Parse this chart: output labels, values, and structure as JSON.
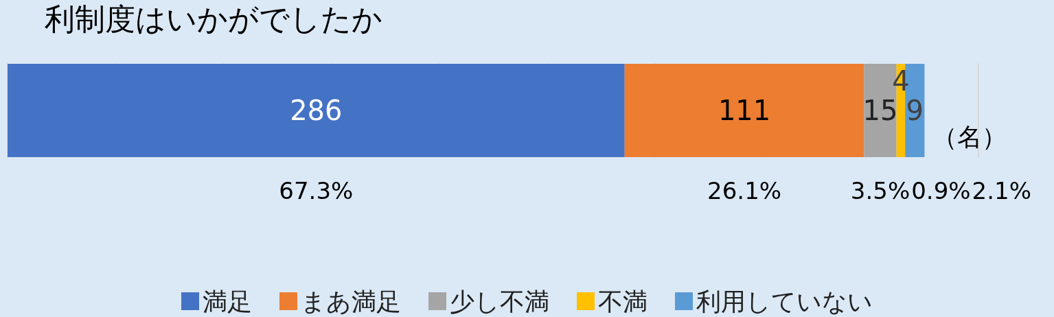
{
  "chart_data": {
    "type": "bar",
    "orientation": "horizontal",
    "stacked": true,
    "title": "利制度はいかがでしたか",
    "categories": [
      null
    ],
    "series": [
      {
        "name": "満足",
        "color": "#4472c4",
        "values": [
          286
        ]
      },
      {
        "name": "まあ満足",
        "color": "#ed7d31",
        "values": [
          111
        ]
      },
      {
        "name": "少し不満",
        "color": "#a5a5a5",
        "values": [
          15
        ]
      },
      {
        "name": "不満",
        "color": "#ffc000",
        "values": [
          4
        ]
      },
      {
        "name": "利用していない",
        "color": "#5b9bd5",
        "values": [
          9
        ]
      }
    ],
    "data_labels": true,
    "xlim": [
      0,
      450
    ],
    "xticks": [
      {
        "value": 0,
        "label": null
      },
      {
        "value": 50,
        "label": null
      },
      {
        "value": 100,
        "label": null
      },
      {
        "value": 150,
        "label": null
      },
      {
        "value": 200,
        "label": null
      },
      {
        "value": 250,
        "label": null
      },
      {
        "value": 300,
        "label": null
      },
      {
        "value": 350,
        "label": null
      },
      {
        "value": 400,
        "label": null
      },
      {
        "value": 450,
        "label": null
      }
    ],
    "grid": "x",
    "legend": "bottom",
    "annotations": [
      "67.3%",
      "26.1%",
      "3.5%",
      "0.9%",
      "2.1%",
      "（名）"
    ]
  }
}
